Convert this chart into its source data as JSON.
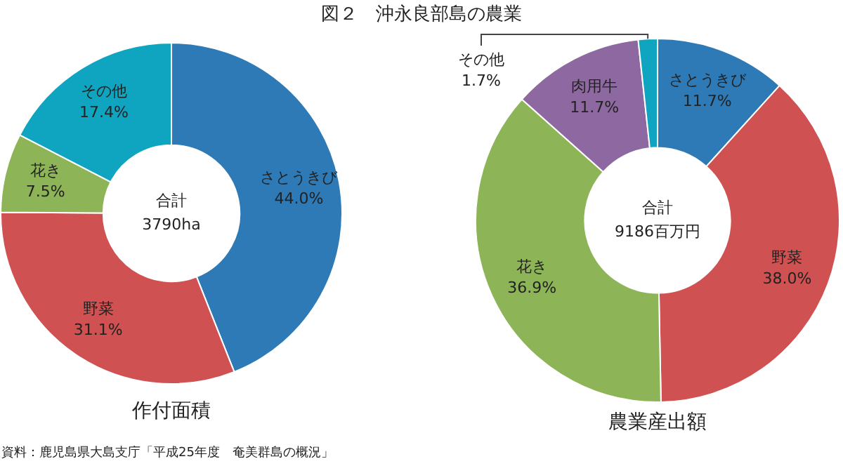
{
  "chart_data": [
    {
      "type": "donut",
      "title": "図２　沖永良部島の農業",
      "xlabel": "作付面積",
      "categories": [
        "さとうきび",
        "野菜",
        "花き",
        "その他"
      ],
      "values": [
        44.0,
        31.1,
        7.5,
        17.4
      ],
      "value_labels": [
        "44.0%",
        "31.1%",
        "7.5%",
        "17.4%"
      ],
      "colors": [
        "#2e7ab6",
        "#d05151",
        "#8db557",
        "#0fa5c0"
      ],
      "annotations": [
        "合計\n3790ha",
        "資料：鹿児島県大島支庁「平成25年度　奄美群島の概況」"
      ]
    },
    {
      "type": "donut",
      "xlabel": "農業産出額",
      "categories": [
        "さとうきび",
        "野菜",
        "花き",
        "肉用牛",
        "その他"
      ],
      "values": [
        11.7,
        38.0,
        36.9,
        11.7,
        1.7
      ],
      "value_labels": [
        "11.7%",
        "38.0%",
        "36.9%",
        "11.7%",
        "1.7%"
      ],
      "colors": [
        "#2e7ab6",
        "#d05151",
        "#8db557",
        "#8e68a0",
        "#0fa5c0"
      ],
      "annotations": [
        "合計\n9186百万円"
      ]
    }
  ]
}
